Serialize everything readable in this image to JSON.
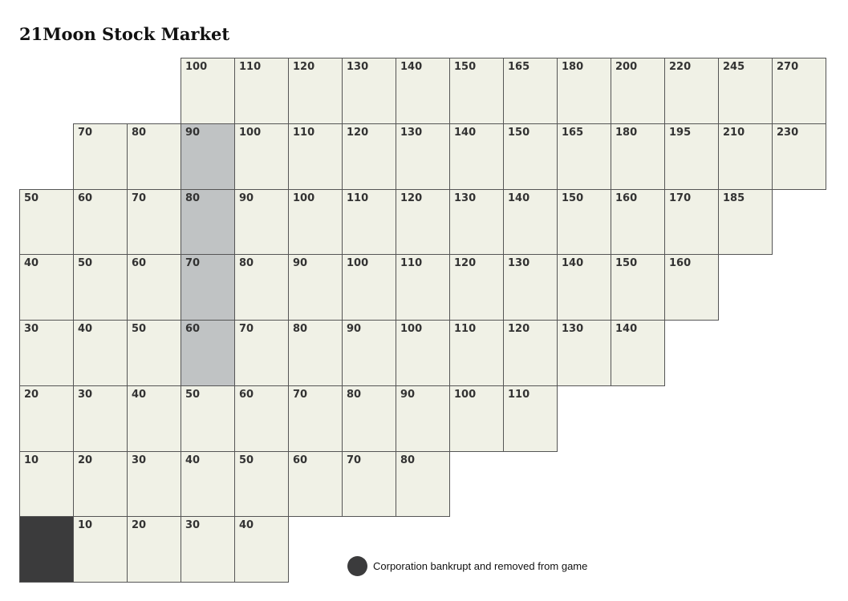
{
  "title": "21Moon Stock Market",
  "colors": {
    "cell": "#f0f1e6",
    "grey_column": "#c0c3c4",
    "bankrupt": "#3b3b3c",
    "border": "#555555"
  },
  "legend": {
    "text": "Corporation bankrupt and removed from game",
    "icon": "dark-circle-icon"
  },
  "market": {
    "rows": [
      {
        "start_col": 3,
        "values": [
          "100",
          "110",
          "120",
          "130",
          "140",
          "150",
          "165",
          "180",
          "200",
          "220",
          "245",
          "270"
        ]
      },
      {
        "start_col": 1,
        "values": [
          "70",
          "80",
          "90",
          "100",
          "110",
          "120",
          "130",
          "140",
          "150",
          "165",
          "180",
          "195",
          "210",
          "230"
        ]
      },
      {
        "start_col": 0,
        "values": [
          "50",
          "60",
          "70",
          "80",
          "90",
          "100",
          "110",
          "120",
          "130",
          "140",
          "150",
          "160",
          "170",
          "185"
        ]
      },
      {
        "start_col": 0,
        "values": [
          "40",
          "50",
          "60",
          "70",
          "80",
          "90",
          "100",
          "110",
          "120",
          "130",
          "140",
          "150",
          "160"
        ]
      },
      {
        "start_col": 0,
        "values": [
          "30",
          "40",
          "50",
          "60",
          "70",
          "80",
          "90",
          "100",
          "110",
          "120",
          "130",
          "140"
        ]
      },
      {
        "start_col": 0,
        "values": [
          "20",
          "30",
          "40",
          "50",
          "60",
          "70",
          "80",
          "90",
          "100",
          "110"
        ]
      },
      {
        "start_col": 0,
        "values": [
          "10",
          "20",
          "30",
          "40",
          "50",
          "60",
          "70",
          "80"
        ]
      },
      {
        "start_col": 0,
        "values": [
          "",
          "10",
          "20",
          "30",
          "40"
        ]
      }
    ],
    "grey_column": 3,
    "grey_rows": [
      1,
      2,
      3,
      4
    ],
    "bankrupt_cell": {
      "row": 7,
      "col": 0
    }
  }
}
